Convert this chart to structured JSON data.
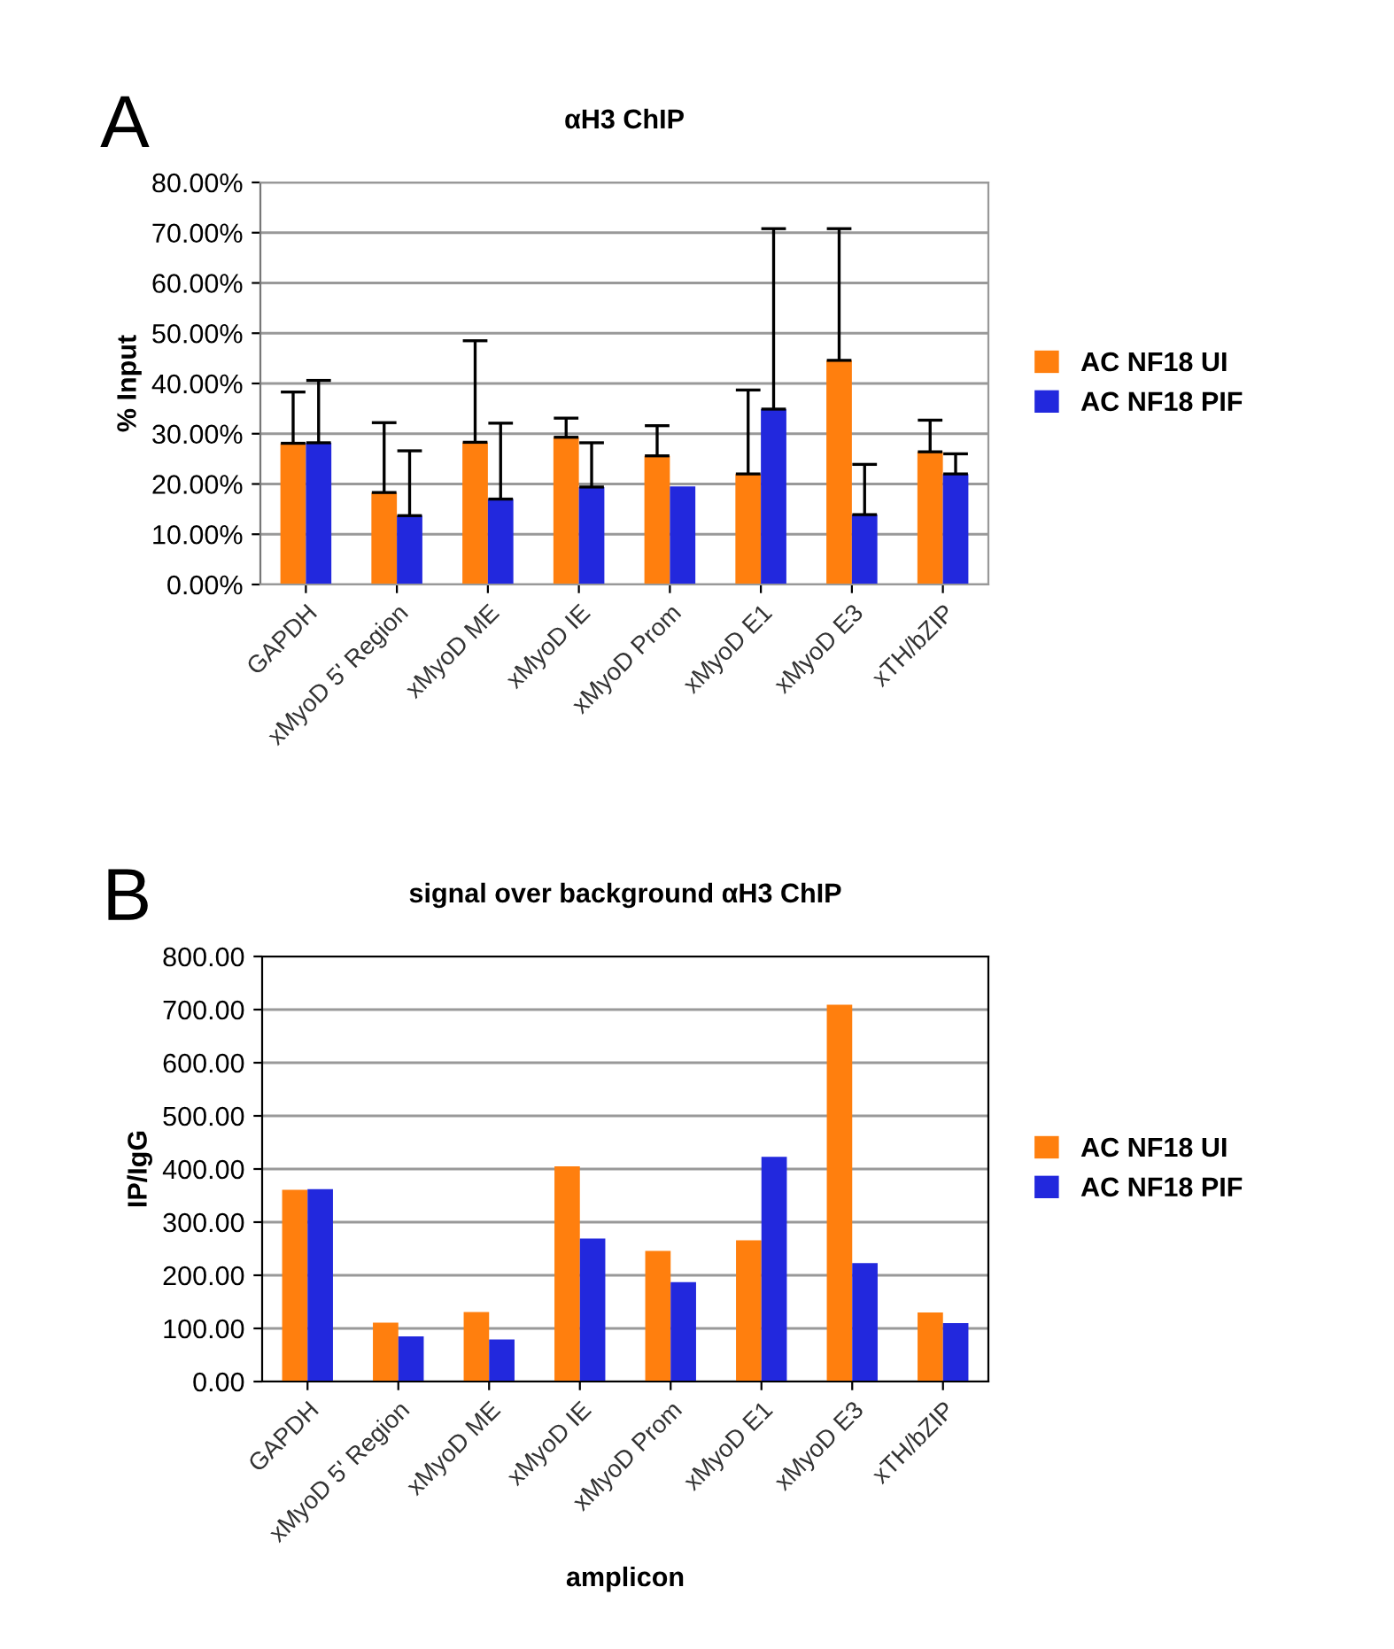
{
  "chart_data": [
    {
      "type": "bar",
      "title": "αH3 ChIP",
      "ylabel": "% Input",
      "annotations": [
        "A"
      ],
      "categories": [
        "GAPDH",
        "xMyoD 5' Region",
        "xMyoD ME",
        "xMyoD IE",
        "xMyoD Prom",
        "xMyoD E1",
        "xMyoD E3",
        "xTH/bZIP"
      ],
      "series": [
        {
          "name": "AC NF18 UI",
          "color": "#ff7f0e",
          "values": [
            28.1,
            18.3,
            28.3,
            29.3,
            25.6,
            22.0,
            44.6,
            26.4
          ],
          "errors": [
            [
              28.1,
              38.3
            ],
            [
              18.3,
              32.2
            ],
            [
              28.3,
              48.5
            ],
            [
              29.3,
              33.1
            ],
            [
              25.6,
              31.6
            ],
            [
              22.0,
              38.7
            ],
            [
              44.6,
              70.8
            ],
            [
              26.4,
              32.7
            ]
          ]
        },
        {
          "name": "AC NF18 PIF",
          "color": "#2228dd",
          "values": [
            28.2,
            13.7,
            17.0,
            19.4,
            19.5,
            34.9,
            13.9,
            22.0
          ],
          "errors": [
            [
              28.2,
              40.6
            ],
            [
              13.7,
              26.6
            ],
            [
              17.0,
              32.1
            ],
            [
              19.4,
              28.2
            ],
            null,
            [
              34.9,
              70.8
            ],
            [
              13.9,
              23.9
            ],
            [
              22.0,
              26.0
            ]
          ]
        }
      ],
      "ylim": [
        0,
        80
      ],
      "yticks": [
        {
          "value": 0,
          "label": "0.00%"
        },
        {
          "value": 10,
          "label": "10.00%"
        },
        {
          "value": 20,
          "label": "20.00%"
        },
        {
          "value": 30,
          "label": "30.00%"
        },
        {
          "value": 40,
          "label": "40.00%"
        },
        {
          "value": 50,
          "label": "50.00%"
        },
        {
          "value": 60,
          "label": "60.00%"
        },
        {
          "value": 70,
          "label": "70.00%"
        },
        {
          "value": 80,
          "label": "80.00%"
        }
      ],
      "grid": "y",
      "legend": "right"
    },
    {
      "type": "bar",
      "title": "signal over background αH3 ChIP",
      "ylabel": "IP/IgG",
      "xlabel": "amplicon",
      "annotations": [
        "B"
      ],
      "categories": [
        "GAPDH",
        "xMyoD 5' Region",
        "xMyoD ME",
        "xMyoD IE",
        "xMyoD Prom",
        "xMyoD E1",
        "xMyoD E3",
        "xTH/bZIP"
      ],
      "series": [
        {
          "name": "AC NF18 UI",
          "color": "#ff7f0e",
          "values": [
            361,
            111,
            131,
            405,
            246,
            266,
            709,
            130
          ]
        },
        {
          "name": "AC NF18 PIF",
          "color": "#2228dd",
          "values": [
            362,
            85,
            79,
            269,
            187,
            423,
            223,
            110
          ]
        }
      ],
      "ylim": [
        0,
        800
      ],
      "yticks": [
        {
          "value": 0,
          "label": "0.00"
        },
        {
          "value": 100,
          "label": "100.00"
        },
        {
          "value": 200,
          "label": "200.00"
        },
        {
          "value": 300,
          "label": "300.00"
        },
        {
          "value": 400,
          "label": "400.00"
        },
        {
          "value": 500,
          "label": "500.00"
        },
        {
          "value": 600,
          "label": "600.00"
        },
        {
          "value": 700,
          "label": "700.00"
        },
        {
          "value": 800,
          "label": "800.00"
        }
      ],
      "grid": "y",
      "legend": "right"
    }
  ]
}
